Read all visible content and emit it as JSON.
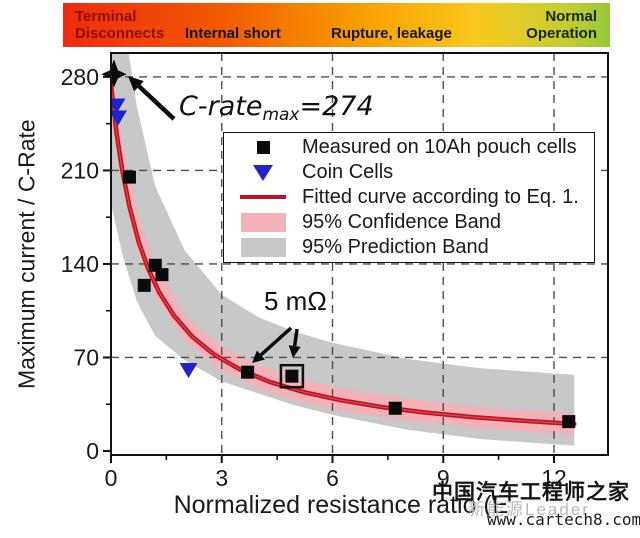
{
  "hazard_bar": {
    "terminal_line1": "Terminal",
    "terminal_line2": "Disconnects",
    "internal": "Internal short",
    "rupture": "Rupture, leakage",
    "normal_line1": "Normal",
    "normal_line2": "Operation"
  },
  "chart_data": {
    "type": "scatter",
    "xlabel": "Normalized resistance ratio (E",
    "ylabel": "Maximum current / C-Rate",
    "xlim": [
      0,
      13.46
    ],
    "ylim": [
      -3,
      298
    ],
    "xticks": [
      0,
      3,
      6,
      9,
      12
    ],
    "yticks": [
      0,
      70,
      140,
      210,
      280
    ],
    "x_minor": [
      1.5,
      4.5,
      7.5,
      10.5
    ],
    "y_minor": [
      35,
      105,
      175,
      245
    ],
    "grid_x": [
      3,
      6,
      9,
      12
    ],
    "grid_y": [
      70,
      140,
      210,
      280
    ],
    "grid_on": true,
    "legend_position": "upper right",
    "series": [
      {
        "name": "95% Prediction Band",
        "kind": "band",
        "color": "#c8c8c8",
        "x": [
          0,
          0.3,
          0.7,
          1.2,
          2,
          3,
          4,
          5,
          6,
          8,
          10,
          12,
          12.55
        ],
        "hi": [
          430,
          330,
          258,
          198,
          150,
          117,
          100,
          89,
          81,
          69,
          62,
          58,
          57
        ],
        "lo": [
          185,
          148,
          112,
          86,
          68,
          52,
          43,
          34,
          27,
          16,
          9,
          5,
          4
        ]
      },
      {
        "name": "95% Confidence Band",
        "kind": "band",
        "color": "#f3b2b8",
        "x": [
          0,
          0.3,
          0.7,
          1.2,
          2,
          3,
          4,
          5,
          6,
          8,
          10,
          12,
          12.55
        ],
        "hi": [
          290,
          232,
          180,
          140,
          102,
          78,
          64,
          55,
          48,
          39,
          33,
          29,
          28
        ],
        "lo": [
          256,
          204,
          154,
          116,
          83,
          60,
          47,
          38,
          31,
          23,
          17,
          13,
          12
        ]
      },
      {
        "name": "Fitted curve according to Eq. 1.",
        "kind": "line",
        "color": "#c11021",
        "points": [
          [
            0,
            274
          ],
          [
            0.15,
            238.3
          ],
          [
            0.3,
            210.8
          ],
          [
            0.5,
            182.7
          ],
          [
            0.75,
            156.6
          ],
          [
            1,
            137
          ],
          [
            1.3,
            119.1
          ],
          [
            1.7,
            101.5
          ],
          [
            2.2,
            85.6
          ],
          [
            2.8,
            72.1
          ],
          [
            3.5,
            60.9
          ],
          [
            4.3,
            51.7
          ],
          [
            5.2,
            44.2
          ],
          [
            6.2,
            38.1
          ],
          [
            7.3,
            33
          ],
          [
            8.5,
            28.8
          ],
          [
            9.8,
            25.4
          ],
          [
            11.2,
            22.5
          ],
          [
            12.55,
            20.2
          ]
        ]
      },
      {
        "name": "Measured on 10Ah pouch cells",
        "kind": "scatter",
        "marker": "square",
        "color": "#0a0a0a",
        "points": [
          [
            0.5,
            205
          ],
          [
            0.9,
            124
          ],
          [
            1.2,
            139
          ],
          [
            1.38,
            132
          ],
          [
            3.7,
            59
          ],
          [
            4.9,
            56
          ],
          [
            7.7,
            32
          ],
          [
            12.4,
            22
          ]
        ]
      },
      {
        "name": "Coin Cells",
        "kind": "scatter",
        "marker": "triangle-down",
        "color": "#2222cc",
        "points": [
          [
            0.15,
            259
          ],
          [
            0.19,
            250
          ],
          [
            2.1,
            61
          ]
        ]
      }
    ],
    "special_points": {
      "c_rate_max_star": [
        0.08,
        282
      ],
      "c_rate_max_value": 274,
      "highlighted_point": [
        4.9,
        56
      ]
    }
  },
  "legend": {
    "items": [
      {
        "marker": "square",
        "color": "#0a0a0a",
        "label": "Measured on 10Ah pouch cells"
      },
      {
        "marker": "triangle-down",
        "color": "#2222cc",
        "label": "Coin Cells"
      },
      {
        "marker": "line",
        "color": "#c11021",
        "label": "Fitted curve according to Eq. 1."
      },
      {
        "marker": "band",
        "color": "#f3b2b8",
        "label": "95% Confidence Band"
      },
      {
        "marker": "band",
        "color": "#c8c8c8",
        "label": "95% Prediction Band"
      }
    ]
  },
  "annotations": {
    "crate_prefix": "C-rate",
    "crate_sub": "max",
    "crate_suffix": "=274",
    "five_mohm": "5 mΩ"
  },
  "watermark": {
    "line1": "中国汽车工程师之家",
    "line2": "新能源Leader",
    "line3": "www.cartech8.com"
  }
}
